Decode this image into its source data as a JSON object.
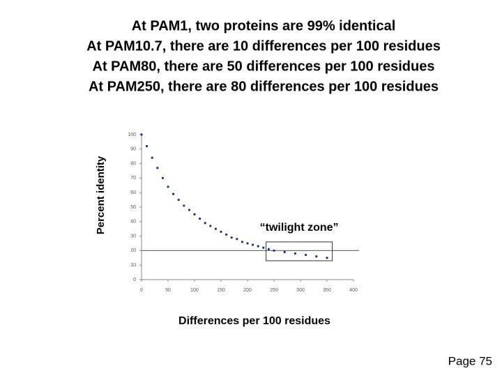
{
  "chart_data": {
    "type": "scatter",
    "title_lines": [
      "At PAM1, two proteins are 99% identical",
      "At PAM10.7, there are 10 differences per 100 residues",
      "At PAM80, there are 50 differences per 100 residues",
      "At PAM250, there are 80 differences per 100 residues"
    ],
    "x_label": "Differences per 100 residues",
    "y_label": "Percent identity",
    "series": [
      {
        "color": "#1f2f6e",
        "x": [
          0,
          10,
          20,
          30,
          40,
          50,
          60,
          70,
          80,
          90,
          100,
          110,
          120,
          130,
          140,
          150,
          160,
          170,
          180,
          190,
          200,
          210,
          220,
          230,
          240,
          250,
          270,
          290,
          310,
          330,
          350
        ],
        "values": [
          100,
          92,
          84,
          77,
          70,
          64,
          59,
          55,
          51,
          48,
          45,
          42,
          39,
          37,
          35,
          33,
          31,
          29,
          28,
          26,
          25,
          24,
          23,
          22,
          21,
          20,
          19,
          18,
          17,
          16,
          15
        ]
      }
    ],
    "xlim": [
      0,
      400
    ],
    "xticks": [
      0,
      50,
      100,
      150,
      200,
      250,
      300,
      350,
      400
    ],
    "ylim": [
      0,
      100
    ],
    "yticks": [
      0,
      10,
      20,
      30,
      40,
      50,
      60,
      70,
      80,
      90,
      100
    ],
    "reference_line": 20,
    "twilight_zone": {
      "label": "“twilight zone”",
      "x": [
        235,
        360
      ],
      "y": [
        13,
        26
      ]
    }
  },
  "page_number": "Page 75"
}
